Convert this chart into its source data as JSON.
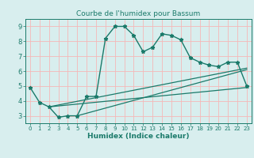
{
  "title": "Courbe de l'humidex pour Bassum",
  "xlabel": "Humidex (Indice chaleur)",
  "bg_color": "#d8eeee",
  "grid_color": "#f5b8b8",
  "line_color": "#1a7a6a",
  "xlim": [
    -0.5,
    23.5
  ],
  "ylim": [
    2.5,
    9.5
  ],
  "xticks": [
    0,
    1,
    2,
    3,
    4,
    5,
    6,
    7,
    8,
    9,
    10,
    11,
    12,
    13,
    14,
    15,
    16,
    17,
    18,
    19,
    20,
    21,
    22,
    23
  ],
  "yticks": [
    3,
    4,
    5,
    6,
    7,
    8,
    9
  ],
  "main_x": [
    0,
    1,
    2,
    3,
    4,
    5,
    6,
    7,
    8,
    9,
    10,
    11,
    12,
    13,
    14,
    15,
    16,
    17,
    18,
    19,
    20,
    21,
    22,
    23
  ],
  "main_y": [
    4.9,
    3.9,
    3.6,
    2.9,
    3.0,
    3.0,
    4.3,
    4.3,
    8.2,
    9.0,
    9.0,
    8.4,
    7.3,
    7.6,
    8.5,
    8.4,
    8.1,
    6.9,
    6.6,
    6.4,
    6.3,
    6.6,
    6.6,
    5.0
  ],
  "trend1_x": [
    2,
    23
  ],
  "trend1_y": [
    3.6,
    6.2
  ],
  "trend2_x": [
    2,
    23
  ],
  "trend2_y": [
    3.6,
    4.9
  ],
  "trend3_x": [
    5,
    23
  ],
  "trend3_y": [
    3.0,
    6.1
  ]
}
